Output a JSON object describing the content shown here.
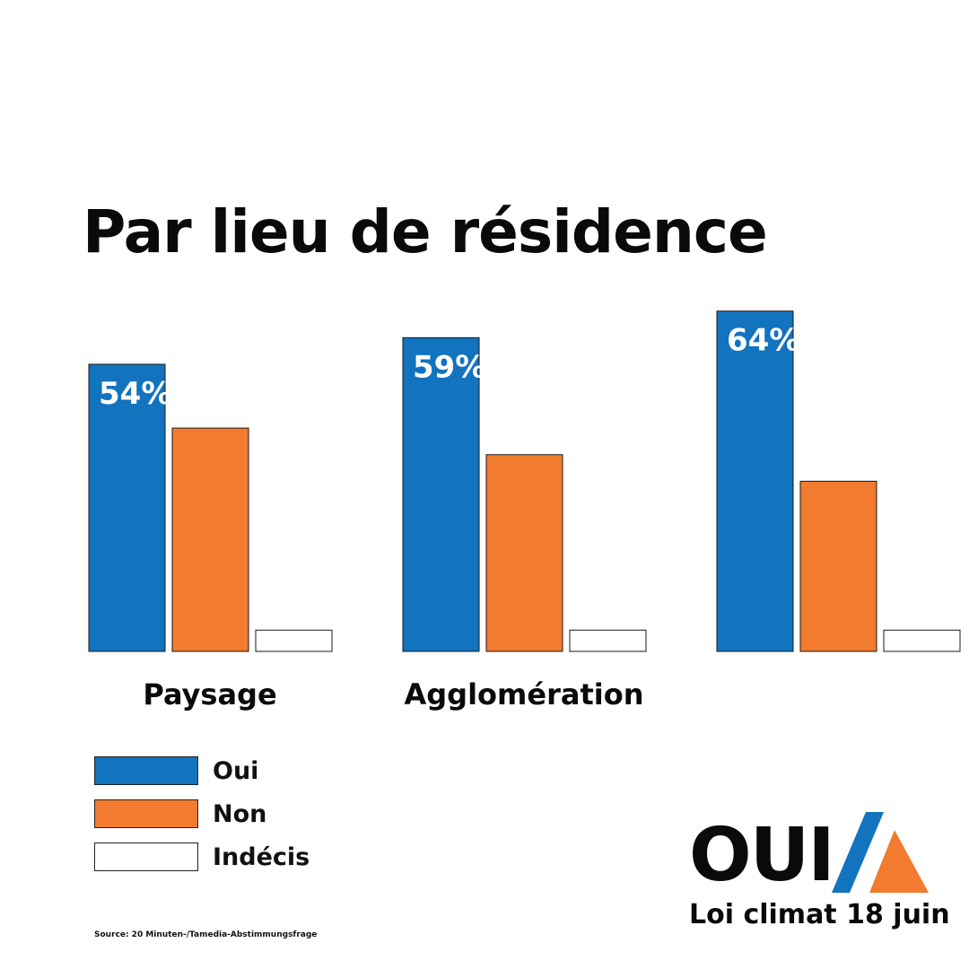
{
  "chart_data": {
    "type": "bar",
    "title": "Par lieu de résidence",
    "categories": [
      "Paysage",
      "Agglomération",
      ""
    ],
    "series": [
      {
        "name": "Oui",
        "color": "#1273BE",
        "values": [
          54,
          59,
          64
        ]
      },
      {
        "name": "Non",
        "color": "#F27B2F",
        "values": [
          42,
          37,
          32
        ]
      },
      {
        "name": "Indécis",
        "color": "#FFFFFF",
        "values": [
          4,
          4,
          4
        ]
      }
    ],
    "data_labels": [
      "54%",
      "59%",
      "64%"
    ],
    "ylim": [
      0,
      70
    ],
    "legend": "bottom-left"
  },
  "title": "Par lieu de résidence",
  "legend": {
    "items": [
      {
        "label": "Oui",
        "color": "#1273BE"
      },
      {
        "label": "Non",
        "color": "#F27B2F"
      },
      {
        "label": "Indécis",
        "color": "#FFFFFF"
      }
    ]
  },
  "source": "Source: 20 Minuten-/Tamedia-Abstimmungsfrage",
  "logo": {
    "word": "OUI",
    "subtitle": "Loi climat 18 juin",
    "icon": "mountain-logo-icon",
    "colors": {
      "blue": "#1273BE",
      "orange": "#F27B2F"
    }
  }
}
